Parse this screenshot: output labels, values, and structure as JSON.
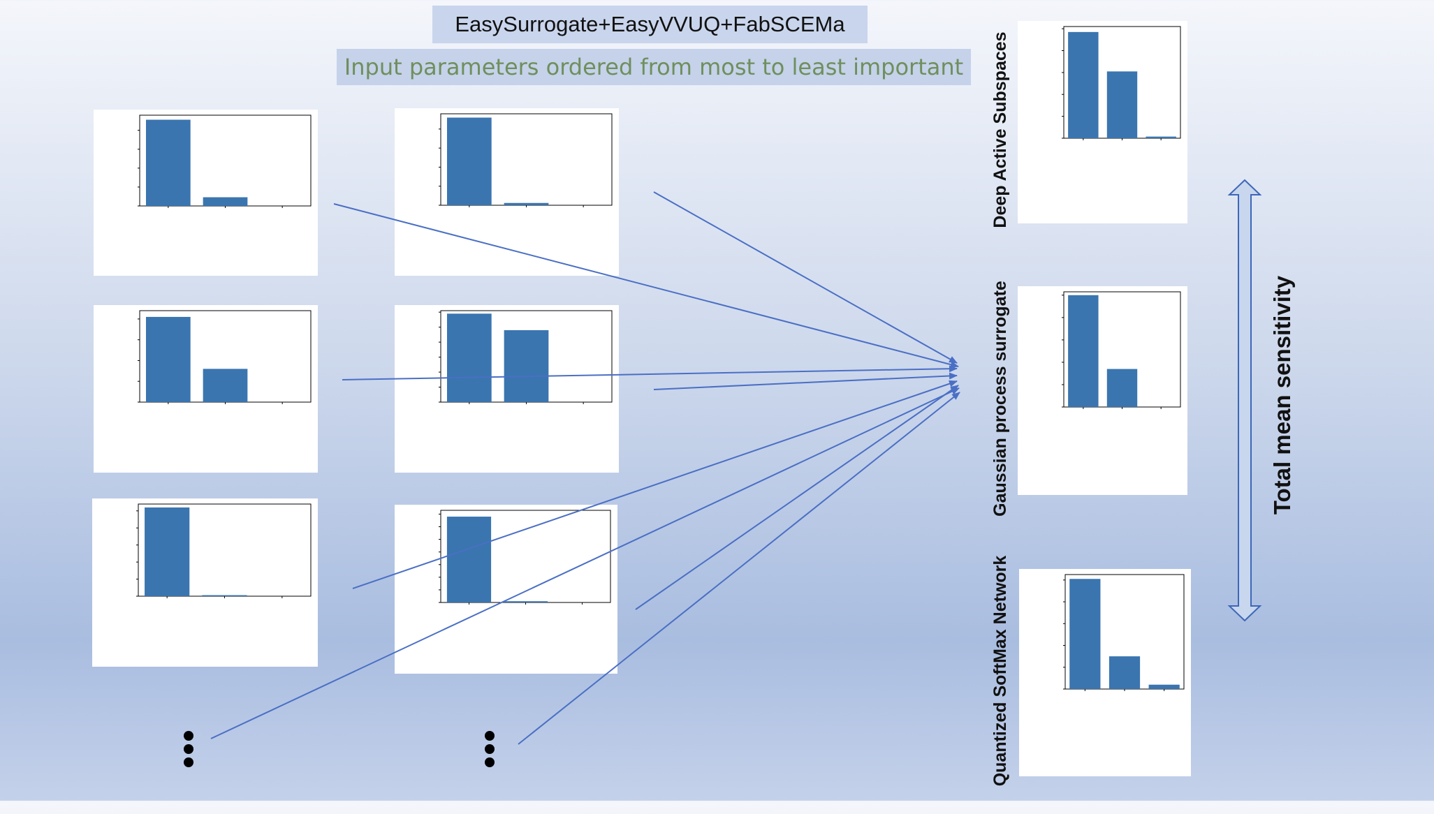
{
  "header": {
    "title": "EasySurrogate+EasyVVUQ+FabSCEMa",
    "subtitle": "Input parameters ordered from most to least important"
  },
  "right_axis_label": "Total mean sensitivity",
  "methods": [
    {
      "label": "Deep Active Subspaces"
    },
    {
      "label": "Gaussian process surrogate"
    },
    {
      "label": "Quantized SoftMax Network"
    }
  ],
  "colors": {
    "bar": "#3a75af",
    "arrow": "#4a6fc4",
    "title_bg": "#c9d5ec",
    "subtitle_text": "#6f8f5c"
  },
  "continuation_marker": "vertical-ellipsis",
  "chart_data": [
    {
      "id": "p1",
      "type": "bar",
      "values": [
        2.28,
        0.23,
        0.0
      ],
      "ylim": [
        0,
        2.4
      ],
      "yticks": [
        0,
        0.5,
        1,
        1.5,
        2
      ]
    },
    {
      "id": "p2",
      "type": "bar",
      "values": [
        4.6,
        0.12,
        0.0
      ],
      "ylim": [
        0,
        4.8
      ],
      "yticks": [
        0,
        1,
        2,
        3,
        4
      ]
    },
    {
      "id": "p3",
      "type": "bar",
      "values": [
        2.05,
        0.8,
        0.0
      ],
      "ylim": [
        0,
        2.2
      ],
      "yticks": [
        0,
        0.5,
        1,
        1.5,
        2
      ]
    },
    {
      "id": "p4",
      "type": "bar",
      "values": [
        2.95,
        2.4,
        0.0
      ],
      "ylim": [
        0,
        3.05
      ],
      "yticks": [
        0,
        0.5,
        1,
        1.5,
        2,
        2.5,
        3
      ]
    },
    {
      "id": "p5",
      "type": "bar",
      "values": [
        2.6,
        0.03,
        0.0
      ],
      "ylim": [
        0,
        2.7
      ],
      "yticks": [
        0,
        0.5,
        1,
        1.5,
        2,
        2.5
      ]
    },
    {
      "id": "p6",
      "type": "bar",
      "values": [
        3.4,
        0.05,
        0.0
      ],
      "ylim": [
        0,
        3.65
      ],
      "yticks": [
        0,
        0.5,
        1,
        1.5,
        2,
        2.5,
        3,
        3.5
      ]
    },
    {
      "id": "das",
      "type": "bar",
      "values": [
        9.7,
        6.1,
        0.15
      ],
      "ylim": [
        0,
        10.2
      ],
      "yticks": [
        0,
        2,
        4,
        6,
        8,
        10
      ]
    },
    {
      "id": "gp",
      "type": "bar",
      "values": [
        1.0,
        0.34,
        0.0
      ],
      "ylim": [
        0,
        1.03
      ],
      "yticks": [
        0,
        0.2,
        0.4,
        0.6,
        0.8,
        1.0
      ]
    },
    {
      "id": "qsn",
      "type": "bar",
      "values": [
        101000,
        30000,
        4000
      ],
      "ylim": [
        0,
        105000
      ],
      "yticks": [
        0,
        20000,
        40000,
        60000,
        80000,
        100000
      ]
    }
  ]
}
